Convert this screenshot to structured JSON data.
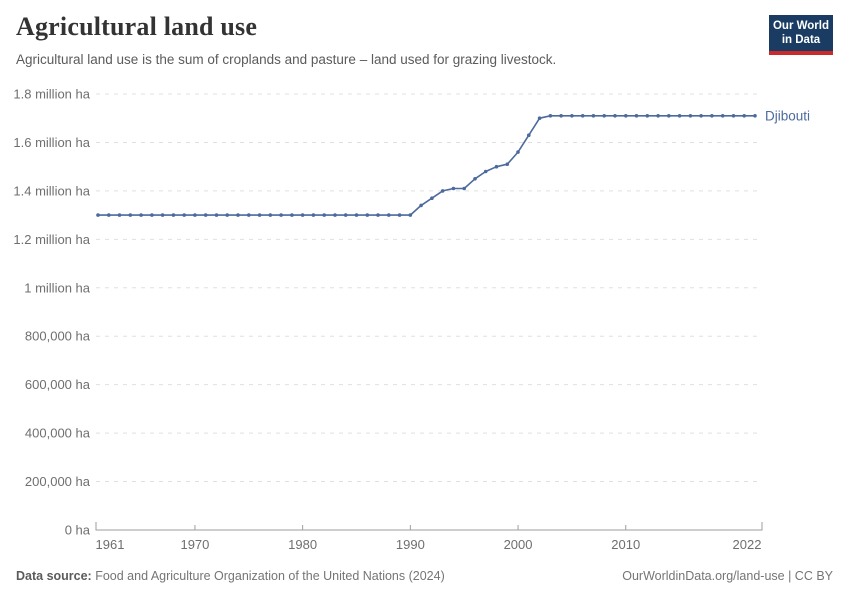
{
  "header": {
    "title": "Agricultural land use",
    "subtitle": "Agricultural land use is the sum of croplands and pasture – land used for grazing livestock.",
    "logo": {
      "line1": "Our World",
      "line2": "in Data"
    }
  },
  "chart_data": {
    "type": "line",
    "title": "Agricultural land use",
    "unit": "ha",
    "xlim": [
      1961,
      2022
    ],
    "ylim": [
      0,
      1800000
    ],
    "grid": "dashed-horizontal",
    "legend_position": "end-of-line-label",
    "x_ticks": [
      1961,
      1970,
      1980,
      1990,
      2000,
      2010,
      2022
    ],
    "y_ticks": [
      {
        "value": 0,
        "label": "0 ha"
      },
      {
        "value": 200000,
        "label": "200,000 ha"
      },
      {
        "value": 400000,
        "label": "400,000 ha"
      },
      {
        "value": 600000,
        "label": "600,000 ha"
      },
      {
        "value": 800000,
        "label": "800,000 ha"
      },
      {
        "value": 1000000,
        "label": "1 million ha"
      },
      {
        "value": 1200000,
        "label": "1.2 million ha"
      },
      {
        "value": 1400000,
        "label": "1.4 million ha"
      },
      {
        "value": 1600000,
        "label": "1.6 million ha"
      },
      {
        "value": 1800000,
        "label": "1.8 million ha"
      }
    ],
    "years": [
      1961,
      1962,
      1963,
      1964,
      1965,
      1966,
      1967,
      1968,
      1969,
      1970,
      1971,
      1972,
      1973,
      1974,
      1975,
      1976,
      1977,
      1978,
      1979,
      1980,
      1981,
      1982,
      1983,
      1984,
      1985,
      1986,
      1987,
      1988,
      1989,
      1990,
      1991,
      1992,
      1993,
      1994,
      1995,
      1996,
      1997,
      1998,
      1999,
      2000,
      2001,
      2002,
      2003,
      2004,
      2005,
      2006,
      2007,
      2008,
      2009,
      2010,
      2011,
      2012,
      2013,
      2014,
      2015,
      2016,
      2017,
      2018,
      2019,
      2020,
      2021,
      2022
    ],
    "series": [
      {
        "name": "Djibouti",
        "color": "#4c6a9c",
        "values": [
          1300000,
          1300000,
          1300000,
          1300000,
          1300000,
          1300000,
          1300000,
          1300000,
          1300000,
          1300000,
          1300000,
          1300000,
          1300000,
          1300000,
          1300000,
          1300000,
          1300000,
          1300000,
          1300000,
          1300000,
          1300000,
          1300000,
          1300000,
          1300000,
          1300000,
          1300000,
          1300000,
          1300000,
          1300000,
          1300000,
          1340000,
          1370000,
          1400000,
          1410000,
          1410000,
          1450000,
          1480000,
          1500000,
          1510000,
          1560000,
          1630000,
          1700000,
          1710000,
          1710000,
          1710000,
          1710000,
          1710000,
          1710000,
          1710000,
          1710000,
          1710000,
          1710000,
          1710000,
          1710000,
          1710000,
          1710000,
          1710000,
          1710000,
          1710000,
          1710000,
          1710000,
          1710000
        ]
      }
    ]
  },
  "footer": {
    "datasource_label": "Data source:",
    "datasource_text": "Food and Agriculture Organization of the United Nations (2024)",
    "url_text": "OurWorldinData.org/land-use | CC BY"
  },
  "colors": {
    "line": "#4c6a9c",
    "logo_navy": "#1a3c63",
    "logo_red": "#cb2a2a",
    "grid": "#e0e0e0",
    "axis": "#9e9e9e",
    "tick_text": "#6f6f6f"
  }
}
